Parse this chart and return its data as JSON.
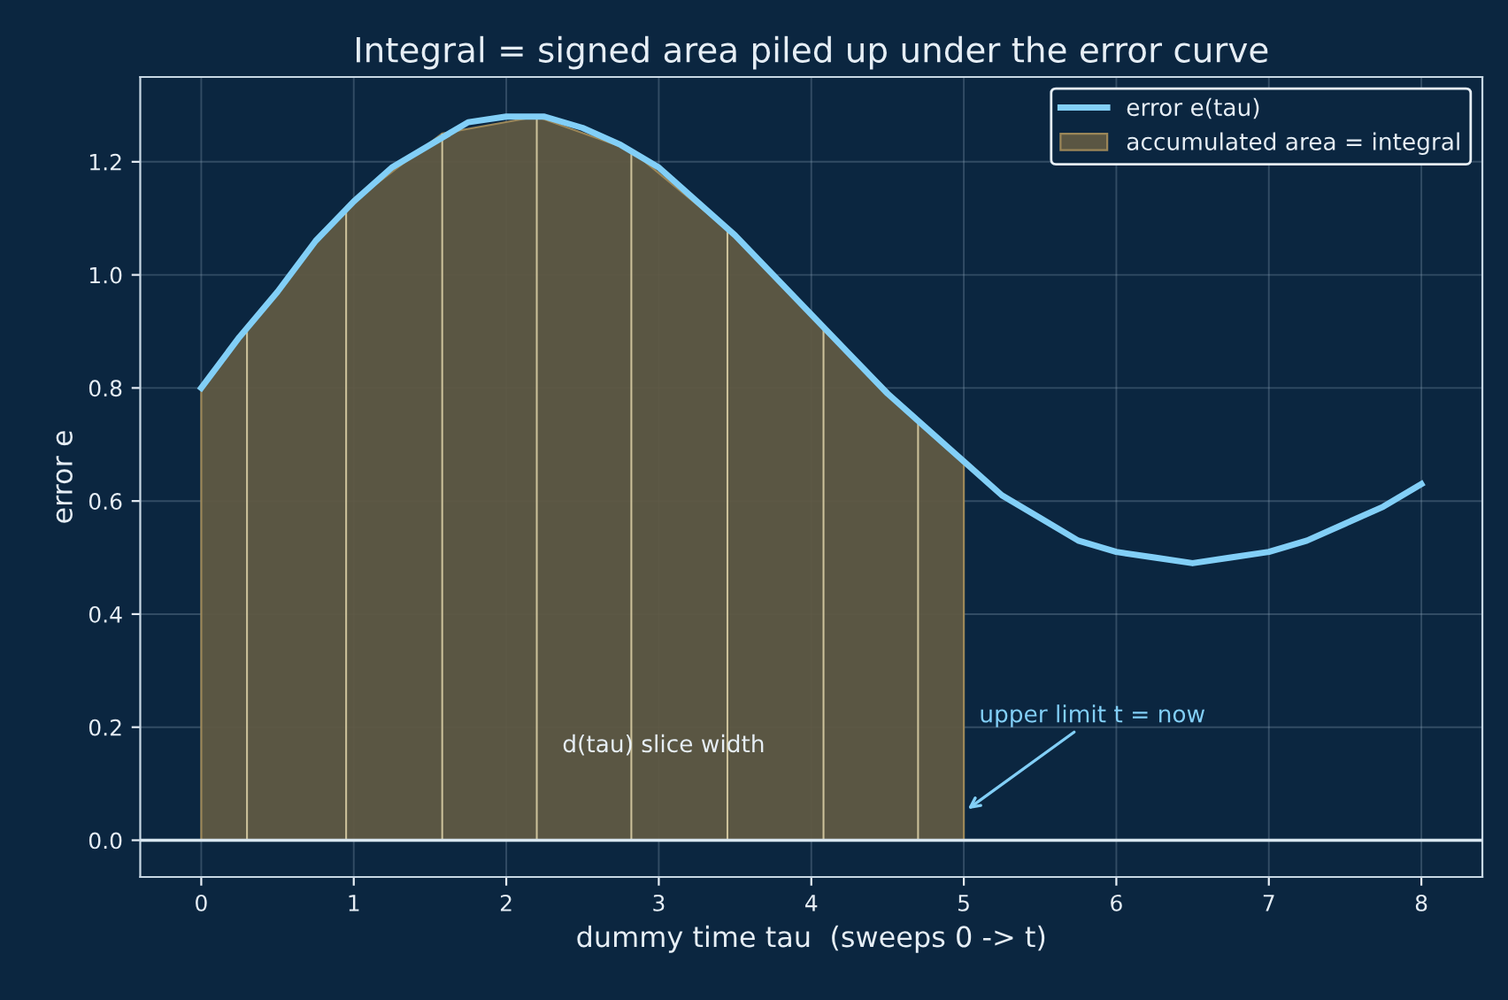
{
  "chart_data": {
    "type": "line",
    "title": "Integral = signed area piled up under the error curve",
    "xlabel": "dummy time tau  (sweeps 0 -> t)",
    "ylabel": "error e",
    "series": [
      {
        "name": "error e(tau)",
        "color": "#82cff7",
        "x": [
          0,
          0.25,
          0.5,
          0.75,
          1,
          1.25,
          1.5,
          1.75,
          2,
          2.25,
          2.5,
          2.75,
          3,
          3.25,
          3.5,
          3.75,
          4,
          4.25,
          4.5,
          4.75,
          5,
          5.25,
          5.5,
          5.75,
          6,
          6.25,
          6.5,
          6.75,
          7,
          7.25,
          7.5,
          7.75,
          8
        ],
        "values": [
          0.8,
          0.89,
          0.97,
          1.06,
          1.13,
          1.19,
          1.23,
          1.27,
          1.28,
          1.28,
          1.26,
          1.23,
          1.19,
          1.13,
          1.07,
          1.0,
          0.93,
          0.86,
          0.79,
          0.73,
          0.67,
          0.61,
          0.57,
          0.53,
          0.51,
          0.5,
          0.49,
          0.5,
          0.51,
          0.53,
          0.56,
          0.59,
          0.63
        ]
      },
      {
        "name": "accumulated area = integral",
        "type": "area",
        "color": "#5f5943",
        "x": [
          0,
          0.3,
          0.95,
          1.58,
          2.2,
          2.82,
          3.45,
          4.08,
          4.7,
          5
        ],
        "values": [
          0.8,
          0.91,
          1.12,
          1.25,
          1.28,
          1.22,
          1.08,
          0.91,
          0.74,
          0.67
        ]
      },
      {
        "type": "bar",
        "color": "#e8dcb0",
        "x": [
          0.3,
          0.95,
          1.58,
          2.2,
          2.82,
          3.45,
          4.08,
          4.7
        ],
        "values": [
          0.91,
          1.12,
          1.25,
          1.28,
          1.22,
          1.08,
          0.91,
          0.74
        ]
      }
    ],
    "annotations": [
      "d(tau) slice width",
      {
        "text": "upper limit t = now",
        "x": 5,
        "y": 0.05
      }
    ],
    "ref_lines": [
      {
        "axis": "y",
        "value": 0,
        "color": "#d8e6f0"
      }
    ],
    "xlim": [
      -0.4,
      8.4
    ],
    "ylim": [
      -0.065,
      1.35
    ],
    "xticks": [
      0,
      1,
      2,
      3,
      4,
      5,
      6,
      7,
      8
    ],
    "yticks": [
      {
        "value": 0,
        "label": "0.0"
      },
      {
        "value": 0.2,
        "label": "0.2"
      },
      {
        "value": 0.4,
        "label": "0.4"
      },
      {
        "value": 0.6,
        "label": "0.6"
      },
      {
        "value": 0.8,
        "label": "0.8"
      },
      {
        "value": 1.0,
        "label": "1.0"
      },
      {
        "value": 1.2,
        "label": "1.2"
      }
    ],
    "grid": true,
    "legend": "top right"
  }
}
